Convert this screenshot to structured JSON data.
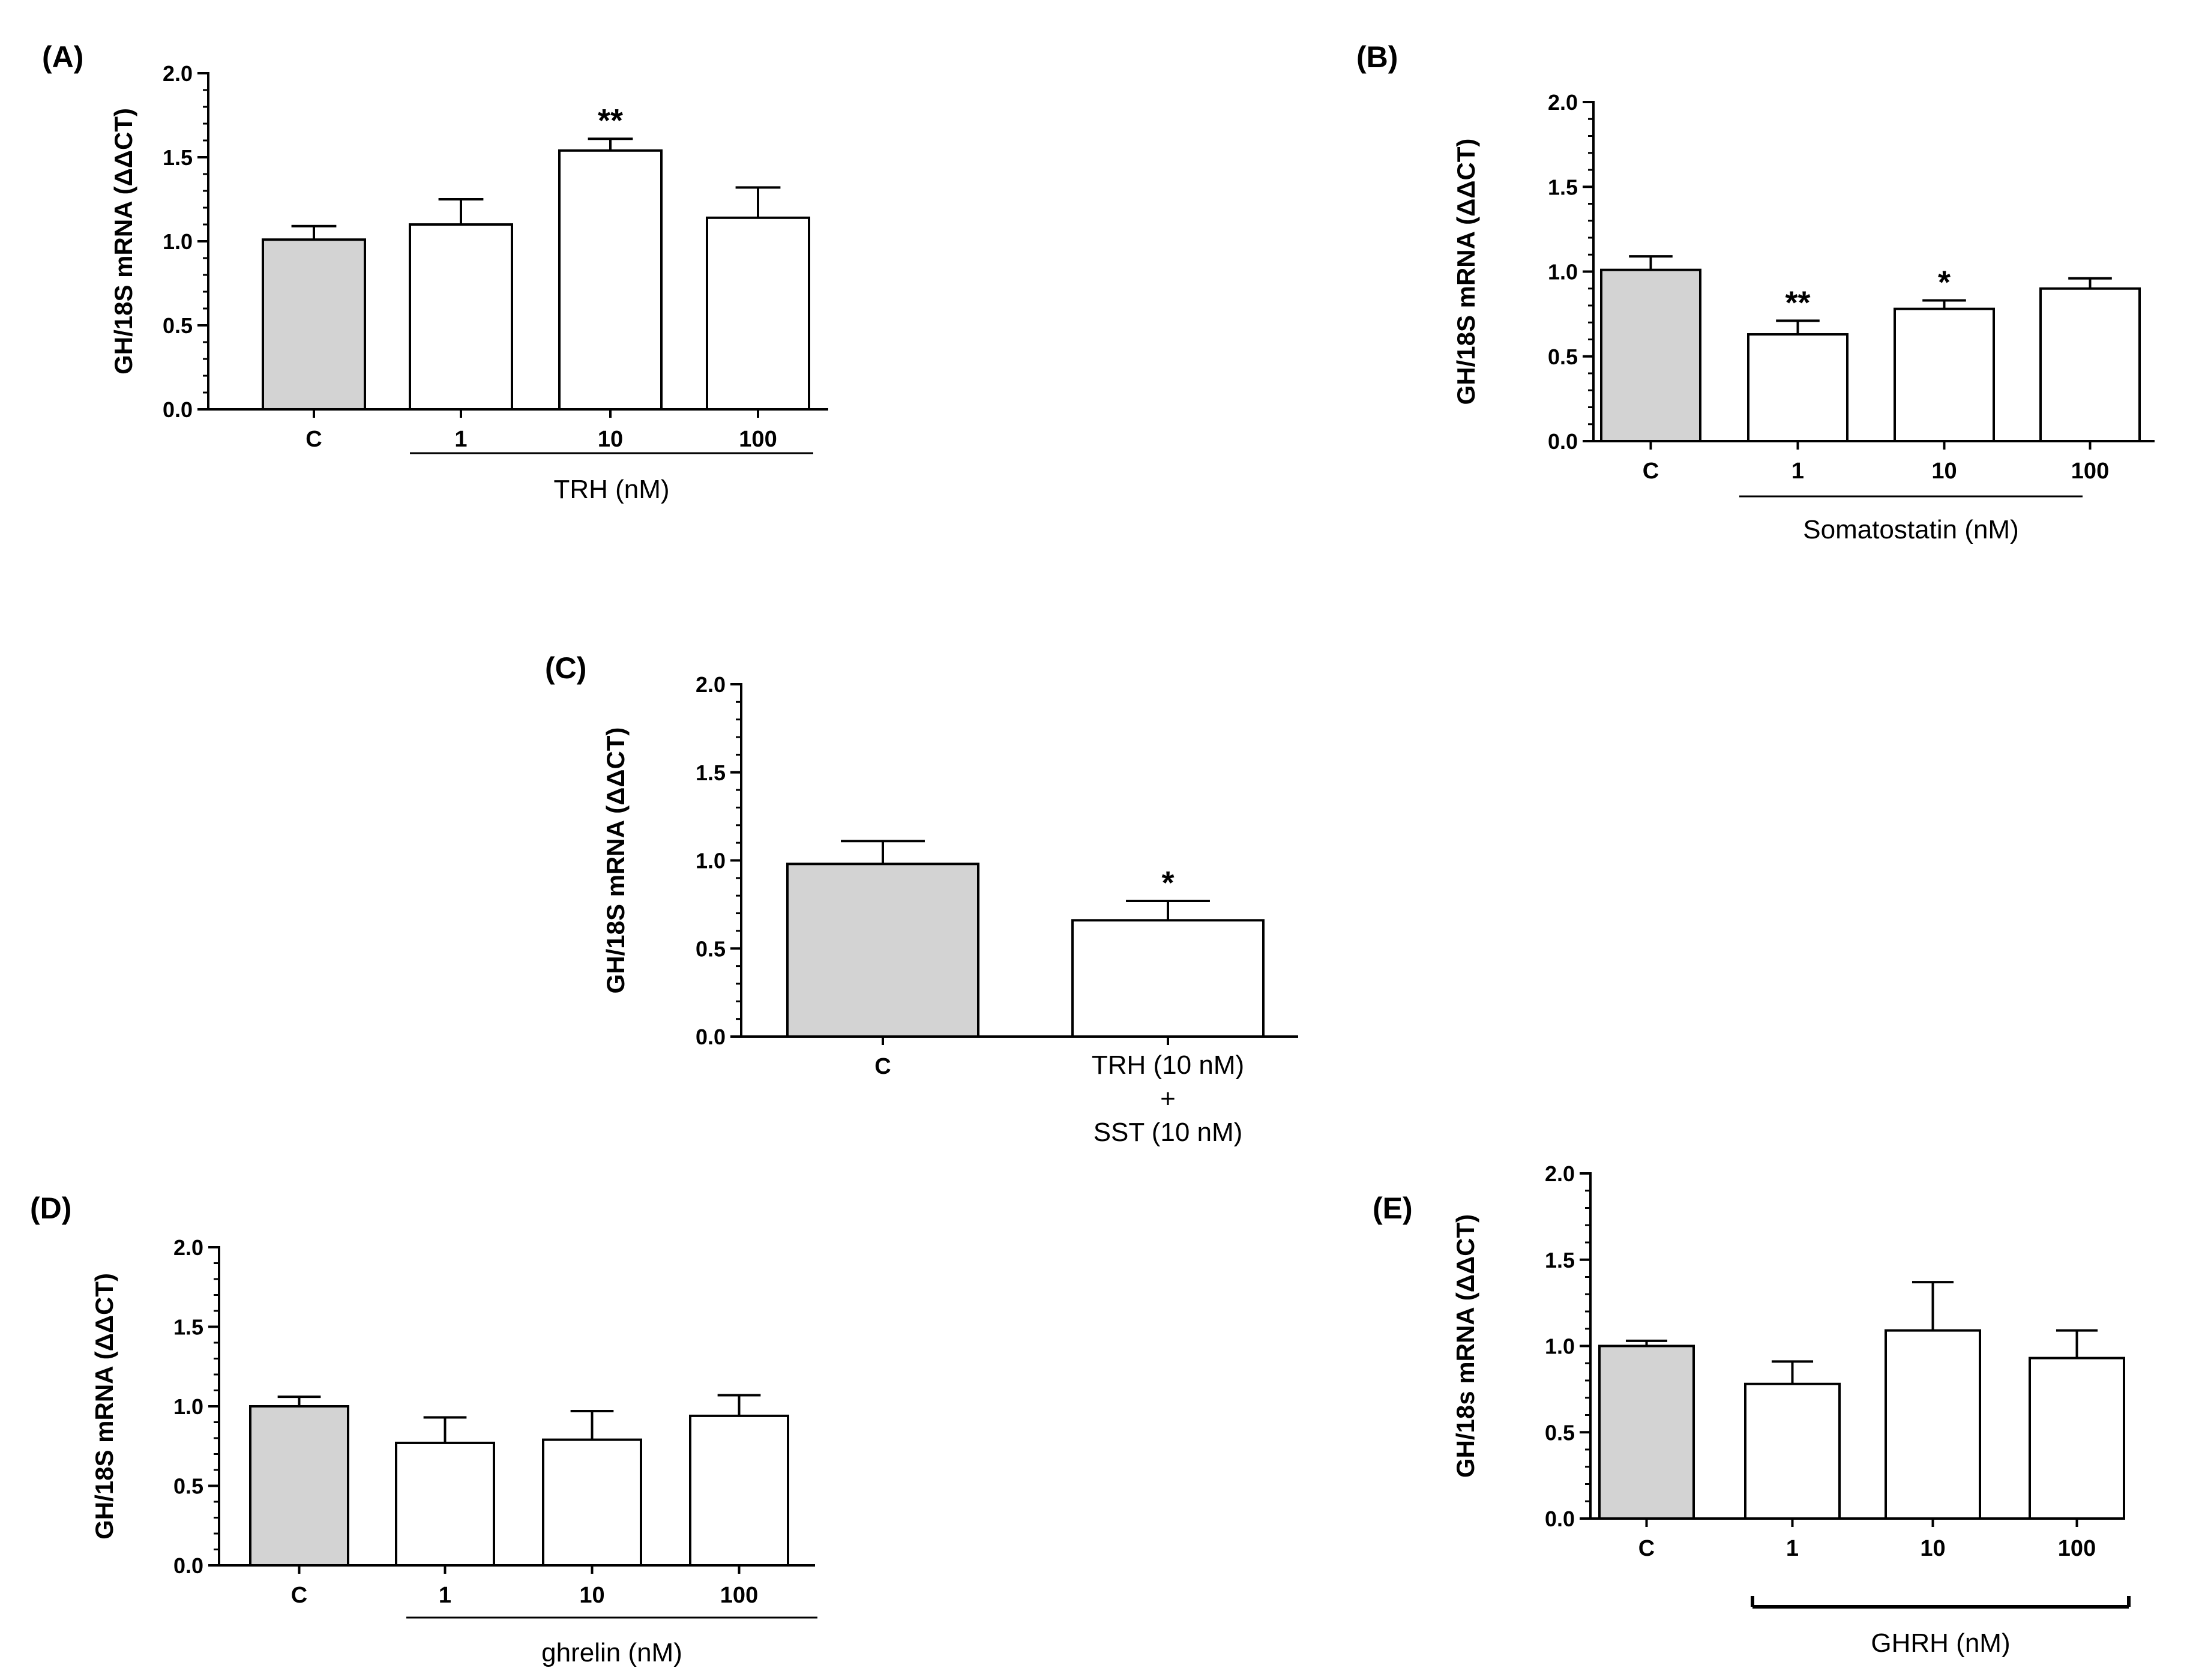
{
  "chart_data": [
    {
      "panel": "(A)",
      "type": "bar",
      "categories": [
        "C",
        "1",
        "10",
        "100"
      ],
      "values": [
        1.01,
        1.1,
        1.54,
        1.14
      ],
      "errors": [
        0.08,
        0.15,
        0.07,
        0.18
      ],
      "fills": [
        "#d3d3d3",
        "#ffffff",
        "#ffffff",
        "#ffffff"
      ],
      "significance": [
        "",
        "",
        "**",
        ""
      ],
      "ylabel": "GH/18S mRNA (ΔΔCT)",
      "ylim": [
        0,
        2.0
      ],
      "yticks": [
        "0.0",
        "0.5",
        "1.0",
        "1.5",
        "2.0"
      ],
      "group_label": "TRH (nM)",
      "group_bracket": "line"
    },
    {
      "panel": "(B)",
      "type": "bar",
      "categories": [
        "C",
        "1",
        "10",
        "100"
      ],
      "values": [
        1.01,
        0.63,
        0.78,
        0.9
      ],
      "errors": [
        0.08,
        0.08,
        0.05,
        0.06
      ],
      "fills": [
        "#d3d3d3",
        "#ffffff",
        "#ffffff",
        "#ffffff"
      ],
      "significance": [
        "",
        "**",
        "*",
        ""
      ],
      "ylabel": "GH/18S mRNA (ΔΔCT)",
      "ylim": [
        0,
        2.0
      ],
      "yticks": [
        "0.0",
        "0.5",
        "1.0",
        "1.5",
        "2.0"
      ],
      "group_label": "Somatostatin (nM)",
      "group_bracket": "line"
    },
    {
      "panel": "(C)",
      "type": "bar",
      "categories": [
        "C",
        "TRH (10 nM)|+|SST (10 nM)"
      ],
      "values": [
        0.98,
        0.66
      ],
      "errors": [
        0.13,
        0.11
      ],
      "fills": [
        "#d3d3d3",
        "#ffffff"
      ],
      "significance": [
        "",
        "*"
      ],
      "ylabel": "GH/18S mRNA (ΔΔCT)",
      "ylim": [
        0,
        2.0
      ],
      "yticks": [
        "0.0",
        "0.5",
        "1.0",
        "1.5",
        "2.0"
      ],
      "group_label": "",
      "group_bracket": "none"
    },
    {
      "panel": "(D)",
      "type": "bar",
      "categories": [
        "C",
        "1",
        "10",
        "100"
      ],
      "values": [
        1.0,
        0.77,
        0.79,
        0.94
      ],
      "errors": [
        0.06,
        0.16,
        0.18,
        0.13
      ],
      "fills": [
        "#d3d3d3",
        "#ffffff",
        "#ffffff",
        "#ffffff"
      ],
      "significance": [
        "",
        "",
        "",
        ""
      ],
      "ylabel": "GH/18S mRNA (ΔΔCT)",
      "ylim": [
        0,
        2.0
      ],
      "yticks": [
        "0.0",
        "0.5",
        "1.0",
        "1.5",
        "2.0"
      ],
      "group_label": "ghrelin (nM)",
      "group_bracket": "line"
    },
    {
      "panel": "(E)",
      "type": "bar",
      "categories": [
        "C",
        "1",
        "10",
        "100"
      ],
      "values": [
        1.0,
        0.78,
        1.09,
        0.93
      ],
      "errors": [
        0.03,
        0.13,
        0.28,
        0.16
      ],
      "fills": [
        "#d3d3d3",
        "#ffffff",
        "#ffffff",
        "#ffffff"
      ],
      "significance": [
        "",
        "",
        "",
        ""
      ],
      "ylabel": "GH/18s mRNA (ΔΔCT)",
      "ylim": [
        0,
        2.0
      ],
      "yticks": [
        "0.0",
        "0.5",
        "1.0",
        "1.5",
        "2.0"
      ],
      "group_label": "GHRH (nM)",
      "group_bracket": "bracket"
    }
  ]
}
